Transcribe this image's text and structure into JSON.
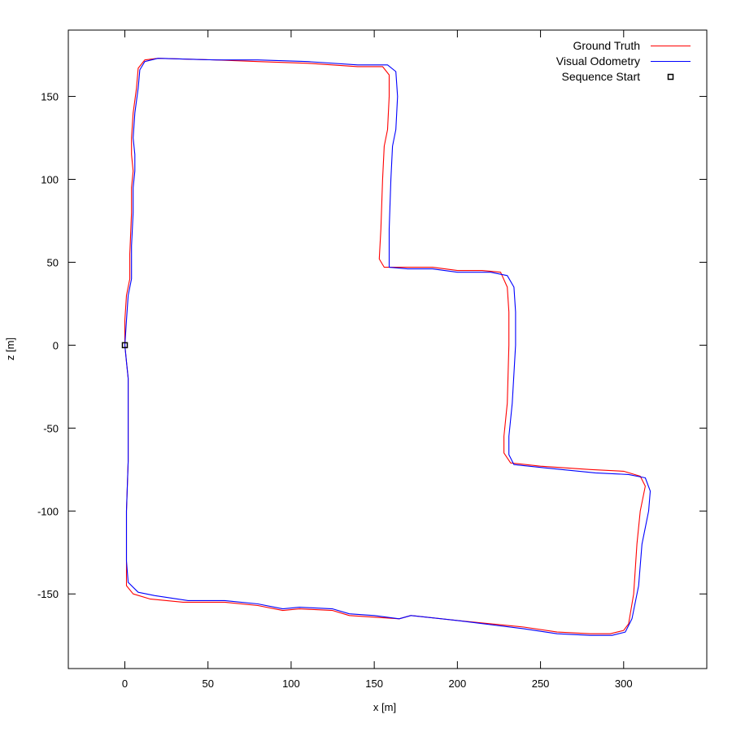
{
  "chart_data": {
    "type": "line",
    "title": "",
    "xlabel": "x [m]",
    "ylabel": "z [m]",
    "xlim": [
      -34,
      350
    ],
    "ylim": [
      -195,
      190
    ],
    "xticks": [
      0,
      50,
      100,
      150,
      200,
      250,
      300
    ],
    "yticks": [
      -150,
      -100,
      -50,
      0,
      50,
      100,
      150
    ],
    "grid": false,
    "legend_position": "top-right",
    "series": [
      {
        "name": "Ground Truth",
        "color": "#ff0000",
        "points": [
          [
            0,
            0
          ],
          [
            1,
            -10
          ],
          [
            2,
            -20
          ],
          [
            2,
            -40
          ],
          [
            2,
            -70
          ],
          [
            1,
            -100
          ],
          [
            1,
            -130
          ],
          [
            1,
            -145
          ],
          [
            5,
            -150
          ],
          [
            15,
            -153
          ],
          [
            35,
            -155
          ],
          [
            60,
            -155
          ],
          [
            80,
            -157
          ],
          [
            95,
            -160
          ],
          [
            105,
            -159
          ],
          [
            125,
            -160
          ],
          [
            135,
            -163
          ],
          [
            150,
            -164
          ],
          [
            165,
            -165
          ],
          [
            172,
            -163
          ],
          [
            200,
            -166
          ],
          [
            240,
            -170
          ],
          [
            260,
            -173
          ],
          [
            280,
            -174
          ],
          [
            292,
            -174
          ],
          [
            300,
            -172
          ],
          [
            303,
            -168
          ],
          [
            306,
            -150
          ],
          [
            308,
            -120
          ],
          [
            310,
            -100
          ],
          [
            313,
            -85
          ],
          [
            310,
            -79
          ],
          [
            300,
            -76
          ],
          [
            280,
            -75
          ],
          [
            250,
            -73
          ],
          [
            232,
            -71
          ],
          [
            228,
            -65
          ],
          [
            228,
            -55
          ],
          [
            230,
            -35
          ],
          [
            231,
            0
          ],
          [
            231,
            20
          ],
          [
            230,
            35
          ],
          [
            226,
            44
          ],
          [
            215,
            45
          ],
          [
            200,
            45
          ],
          [
            185,
            47
          ],
          [
            170,
            47
          ],
          [
            156,
            47
          ],
          [
            153,
            52
          ],
          [
            154,
            70
          ],
          [
            155,
            100
          ],
          [
            156,
            120
          ],
          [
            158,
            130
          ],
          [
            159,
            150
          ],
          [
            159,
            163
          ],
          [
            155,
            168
          ],
          [
            140,
            168
          ],
          [
            110,
            170
          ],
          [
            80,
            171
          ],
          [
            55,
            172
          ],
          [
            20,
            173
          ],
          [
            12,
            172
          ],
          [
            8,
            167
          ],
          [
            7,
            155
          ],
          [
            5,
            140
          ],
          [
            4,
            125
          ],
          [
            4,
            115
          ],
          [
            5,
            105
          ],
          [
            4,
            95
          ],
          [
            4,
            80
          ],
          [
            3,
            55
          ],
          [
            3,
            40
          ],
          [
            1,
            30
          ],
          [
            0,
            15
          ],
          [
            0,
            0
          ]
        ]
      },
      {
        "name": "Visual Odometry",
        "color": "#0000ff",
        "points": [
          [
            0,
            0
          ],
          [
            1,
            -10
          ],
          [
            2,
            -20
          ],
          [
            2,
            -40
          ],
          [
            2,
            -70
          ],
          [
            1,
            -100
          ],
          [
            1,
            -130
          ],
          [
            2,
            -143
          ],
          [
            8,
            -149
          ],
          [
            18,
            -151
          ],
          [
            38,
            -154
          ],
          [
            60,
            -154
          ],
          [
            80,
            -156
          ],
          [
            95,
            -159
          ],
          [
            105,
            -158
          ],
          [
            125,
            -159
          ],
          [
            135,
            -162
          ],
          [
            150,
            -163
          ],
          [
            165,
            -165
          ],
          [
            172,
            -163
          ],
          [
            200,
            -166
          ],
          [
            240,
            -171
          ],
          [
            260,
            -174
          ],
          [
            280,
            -175
          ],
          [
            293,
            -175
          ],
          [
            301,
            -173
          ],
          [
            305,
            -165
          ],
          [
            309,
            -145
          ],
          [
            311,
            -120
          ],
          [
            315,
            -100
          ],
          [
            316,
            -88
          ],
          [
            313,
            -80
          ],
          [
            303,
            -78
          ],
          [
            283,
            -77
          ],
          [
            253,
            -74
          ],
          [
            234,
            -72
          ],
          [
            231,
            -66
          ],
          [
            231,
            -55
          ],
          [
            233,
            -35
          ],
          [
            235,
            0
          ],
          [
            235,
            20
          ],
          [
            234,
            35
          ],
          [
            230,
            42
          ],
          [
            220,
            44
          ],
          [
            200,
            44
          ],
          [
            185,
            46
          ],
          [
            170,
            46
          ],
          [
            159,
            47
          ],
          [
            159,
            52
          ],
          [
            159,
            70
          ],
          [
            160,
            100
          ],
          [
            161,
            120
          ],
          [
            163,
            130
          ],
          [
            164,
            150
          ],
          [
            163,
            165
          ],
          [
            158,
            169
          ],
          [
            140,
            169
          ],
          [
            110,
            171
          ],
          [
            80,
            172
          ],
          [
            55,
            172
          ],
          [
            20,
            173
          ],
          [
            12,
            171
          ],
          [
            9,
            166
          ],
          [
            8,
            155
          ],
          [
            6,
            140
          ],
          [
            5,
            125
          ],
          [
            6,
            115
          ],
          [
            6,
            105
          ],
          [
            5,
            95
          ],
          [
            5,
            80
          ],
          [
            4,
            60
          ],
          [
            4,
            40
          ],
          [
            2,
            30
          ],
          [
            1,
            15
          ],
          [
            0,
            0
          ]
        ]
      }
    ],
    "markers": [
      {
        "name": "Sequence Start",
        "x": 0,
        "y": 0,
        "shape": "square",
        "color": "#000000"
      }
    ]
  }
}
